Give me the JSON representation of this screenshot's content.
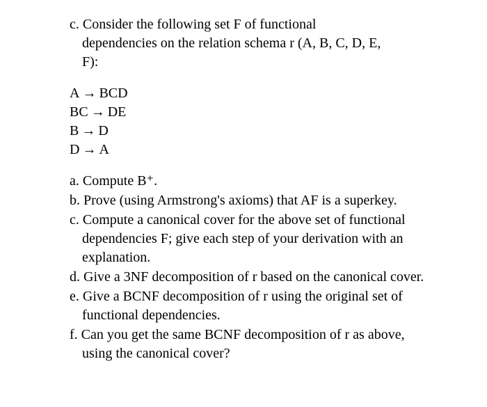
{
  "intro": {
    "line1": "c. Consider the following set F of functional",
    "line2": "dependencies on the relation schema r (A, B, C, D, E,",
    "line3": "F):"
  },
  "fds": [
    {
      "lhs": "A",
      "rhs": "BCD"
    },
    {
      "lhs": "BC",
      "rhs": "DE"
    },
    {
      "lhs": "B",
      "rhs": "D"
    },
    {
      "lhs": "D",
      "rhs": "A"
    }
  ],
  "arrow": "→",
  "parts": {
    "a": "a. Compute B⁺.",
    "b": "b. Prove (using Armstrong's axioms) that AF is a superkey.",
    "c": "c. Compute a canonical cover for the above set of functional dependencies F; give each step of your derivation with an explanation.",
    "d": "d. Give a 3NF decomposition of r based on the canonical cover.",
    "e": "e. Give a BCNF decomposition of r using the original set of functional dependencies.",
    "f": "f. Can you get the same BCNF decomposition of r as above, using the canonical cover?"
  }
}
